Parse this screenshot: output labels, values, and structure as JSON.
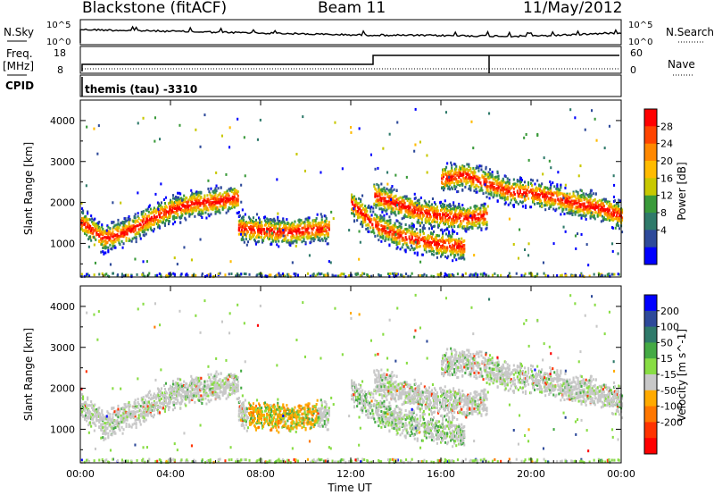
{
  "header": {
    "station": "Blackstone (fitACF)",
    "beam": "Beam 11",
    "date": "11/May/2012"
  },
  "status_panels": {
    "nsky_label": "N.Sky",
    "nsearch_label": "N.Search",
    "freq_label_line1": "Freq.",
    "freq_label_line2": "[MHz]",
    "nave_label": "Nave",
    "cpid_label": "CPID",
    "cpid_text": "themis (tau) -3310",
    "noise_ticks_left": [
      "10^5",
      "10^0"
    ],
    "noise_ticks_right": [
      "10^5",
      "10^0"
    ],
    "freq_ticks": [
      "18",
      "8"
    ],
    "nave_ticks": [
      "60",
      "0"
    ]
  },
  "colorbars": {
    "power": {
      "label": "Power [dB]",
      "ticks": [
        "28",
        "24",
        "20",
        "16",
        "12",
        "8",
        "4"
      ],
      "colors": [
        "#ff0000",
        "#ff4400",
        "#ff8800",
        "#ffbb00",
        "#c8c800",
        "#3a9a3a",
        "#2f7a6a",
        "#2e4a9a",
        "#0000ff"
      ]
    },
    "velocity": {
      "label": "Velocity [m s^-1]",
      "ticks": [
        "200",
        "100",
        "50",
        "15",
        "-15",
        "-50",
        "-100",
        "-200"
      ],
      "colors": [
        "#0000ff",
        "#2e4a9a",
        "#2f7a6a",
        "#44aa44",
        "#88dd44",
        "#c8c8c8",
        "#ffaa00",
        "#ff7700",
        "#ff3300",
        "#ff0000"
      ]
    }
  },
  "chart_data": [
    {
      "type": "heatmap",
      "panel": "power",
      "ylabel": "Slant Range [km]",
      "xlabel": "Time UT",
      "x_ticks": [
        "00:00",
        "04:00",
        "08:00",
        "12:00",
        "16:00",
        "20:00",
        "00:00"
      ],
      "y_ticks": [
        "1000",
        "2000",
        "3000",
        "4000"
      ],
      "xlim_hours": [
        0,
        24
      ],
      "ylim_km": [
        180,
        4500
      ],
      "scatter_bands": [
        {
          "t": [
            0.0,
            1.0,
            2.0,
            3.0,
            4.0,
            5.0,
            6.0,
            7.0
          ],
          "r": [
            1550,
            1150,
            1300,
            1600,
            1850,
            2000,
            2050,
            2150
          ]
        },
        {
          "t": [
            7.0,
            8.0,
            9.0,
            10.0,
            11.0
          ],
          "r": [
            1400,
            1350,
            1300,
            1350,
            1400
          ]
        },
        {
          "t": [
            12.0,
            13.0,
            14.0,
            15.0,
            16.0,
            17.0
          ],
          "r": [
            2000,
            1500,
            1250,
            1100,
            1000,
            950
          ]
        },
        {
          "t": [
            13.0,
            14.0,
            15.0,
            16.0,
            17.0,
            18.0
          ],
          "r": [
            2200,
            2000,
            1800,
            1700,
            1650,
            1700
          ]
        },
        {
          "t": [
            16.0,
            17.0,
            18.0,
            19.0,
            20.0,
            21.0,
            22.0,
            23.0,
            24.0
          ],
          "r": [
            2600,
            2700,
            2500,
            2300,
            2250,
            2150,
            2000,
            1900,
            1700
          ]
        }
      ]
    },
    {
      "type": "heatmap",
      "panel": "velocity",
      "ylabel": "Slant Range [km]",
      "xlabel": "Time UT",
      "x_ticks": [
        "00:00",
        "04:00",
        "08:00",
        "12:00",
        "16:00",
        "20:00",
        "00:00"
      ],
      "y_ticks": [
        "1000",
        "2000",
        "3000",
        "4000"
      ],
      "xlim_hours": [
        0,
        24
      ],
      "ylim_km": [
        180,
        4500
      ]
    }
  ]
}
